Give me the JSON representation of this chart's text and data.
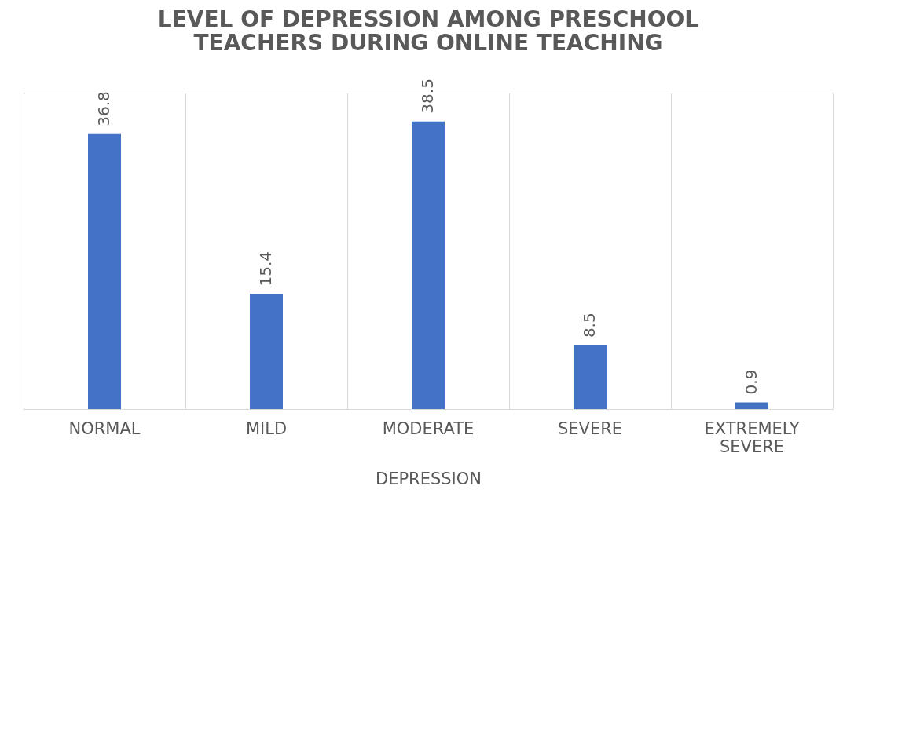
{
  "chart_data": {
    "type": "bar",
    "title": "LEVEL OF DEPRESSION AMONG PRESCHOOL TEACHERS DURING ONLINE TEACHING",
    "xlabel": "DEPRESSION",
    "categories": [
      "NORMAL",
      "MILD",
      "MODERATE",
      "SEVERE",
      "EXTREMELY SEVERE"
    ],
    "values": [
      36.8,
      15.4,
      38.5,
      8.5,
      0.9
    ],
    "color": "#4472c4",
    "data_labels": true,
    "grid": "x"
  }
}
